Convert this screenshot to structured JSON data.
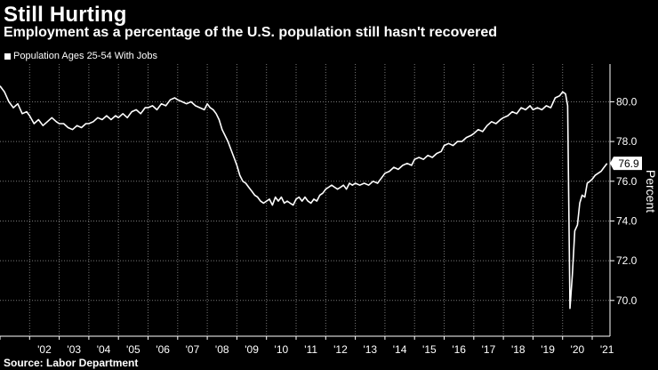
{
  "header": {
    "title": "Still Hurting",
    "subtitle": "Employment as a percentage of the U.S. population still hasn't recovered"
  },
  "legend": {
    "label": "Population Ages 25-54 With Jobs",
    "color": "#ffffff"
  },
  "source": "Source: Labor Department",
  "chart_data": {
    "type": "line",
    "title": "Still Hurting",
    "ylabel": "Percent",
    "xlabel": "",
    "ylim": [
      68.2,
      81.9
    ],
    "xlim": [
      2001.0,
      2021.6
    ],
    "yticks": [
      {
        "value": 70,
        "label": "70.0"
      },
      {
        "value": 72,
        "label": "72.0"
      },
      {
        "value": 74,
        "label": "74.0"
      },
      {
        "value": 76,
        "label": "76.0"
      },
      {
        "value": 78,
        "label": "78.0"
      },
      {
        "value": 80,
        "label": "80.0"
      }
    ],
    "xticks": [
      {
        "value": 2002,
        "label": "'02"
      },
      {
        "value": 2003,
        "label": "'03"
      },
      {
        "value": 2004,
        "label": "'04"
      },
      {
        "value": 2005,
        "label": "'05"
      },
      {
        "value": 2006,
        "label": "'06"
      },
      {
        "value": 2007,
        "label": "'07"
      },
      {
        "value": 2008,
        "label": "'08"
      },
      {
        "value": 2009,
        "label": "'09"
      },
      {
        "value": 2010,
        "label": "'10"
      },
      {
        "value": 2011,
        "label": "'11"
      },
      {
        "value": 2012,
        "label": "'12"
      },
      {
        "value": 2013,
        "label": "'13"
      },
      {
        "value": 2014,
        "label": "'14"
      },
      {
        "value": 2015,
        "label": "'15"
      },
      {
        "value": 2016,
        "label": "'16"
      },
      {
        "value": 2017,
        "label": "'17"
      },
      {
        "value": 2018,
        "label": "'18"
      },
      {
        "value": 2019,
        "label": "'19"
      },
      {
        "value": 2020,
        "label": "'20"
      },
      {
        "value": 2021,
        "label": "'21"
      }
    ],
    "last_value_label": "76.9",
    "series": [
      {
        "name": "Population Ages 25-54 With Jobs",
        "color": "#ffffff",
        "points": [
          [
            2001.0,
            80.8
          ],
          [
            2001.15,
            80.5
          ],
          [
            2001.3,
            80.0
          ],
          [
            2001.45,
            79.7
          ],
          [
            2001.6,
            79.9
          ],
          [
            2001.75,
            79.4
          ],
          [
            2001.9,
            79.5
          ],
          [
            2002.0,
            79.3
          ],
          [
            2002.15,
            78.9
          ],
          [
            2002.3,
            79.1
          ],
          [
            2002.45,
            78.8
          ],
          [
            2002.6,
            79.0
          ],
          [
            2002.75,
            79.2
          ],
          [
            2002.9,
            79.0
          ],
          [
            2003.0,
            78.9
          ],
          [
            2003.15,
            78.9
          ],
          [
            2003.3,
            78.7
          ],
          [
            2003.45,
            78.6
          ],
          [
            2003.6,
            78.8
          ],
          [
            2003.75,
            78.7
          ],
          [
            2003.9,
            78.9
          ],
          [
            2004.0,
            78.9
          ],
          [
            2004.15,
            79.0
          ],
          [
            2004.3,
            79.2
          ],
          [
            2004.45,
            79.1
          ],
          [
            2004.6,
            79.3
          ],
          [
            2004.75,
            79.1
          ],
          [
            2004.9,
            79.3
          ],
          [
            2005.0,
            79.2
          ],
          [
            2005.15,
            79.4
          ],
          [
            2005.3,
            79.2
          ],
          [
            2005.45,
            79.5
          ],
          [
            2005.6,
            79.6
          ],
          [
            2005.75,
            79.4
          ],
          [
            2005.9,
            79.7
          ],
          [
            2006.0,
            79.7
          ],
          [
            2006.15,
            79.8
          ],
          [
            2006.3,
            79.6
          ],
          [
            2006.45,
            79.9
          ],
          [
            2006.6,
            79.8
          ],
          [
            2006.75,
            80.1
          ],
          [
            2006.9,
            80.2
          ],
          [
            2007.0,
            80.1
          ],
          [
            2007.15,
            80.0
          ],
          [
            2007.3,
            79.9
          ],
          [
            2007.45,
            80.0
          ],
          [
            2007.6,
            79.8
          ],
          [
            2007.75,
            79.7
          ],
          [
            2007.9,
            79.6
          ],
          [
            2008.0,
            79.9
          ],
          [
            2008.1,
            79.7
          ],
          [
            2008.2,
            79.6
          ],
          [
            2008.3,
            79.4
          ],
          [
            2008.4,
            79.1
          ],
          [
            2008.5,
            78.6
          ],
          [
            2008.6,
            78.3
          ],
          [
            2008.7,
            78.0
          ],
          [
            2008.8,
            77.6
          ],
          [
            2008.9,
            77.2
          ],
          [
            2009.0,
            76.8
          ],
          [
            2009.1,
            76.3
          ],
          [
            2009.2,
            76.0
          ],
          [
            2009.3,
            75.9
          ],
          [
            2009.4,
            75.7
          ],
          [
            2009.5,
            75.5
          ],
          [
            2009.6,
            75.3
          ],
          [
            2009.7,
            75.2
          ],
          [
            2009.8,
            75.0
          ],
          [
            2009.9,
            74.9
          ],
          [
            2010.0,
            75.0
          ],
          [
            2010.1,
            75.1
          ],
          [
            2010.2,
            74.8
          ],
          [
            2010.3,
            75.2
          ],
          [
            2010.4,
            75.0
          ],
          [
            2010.5,
            75.2
          ],
          [
            2010.6,
            74.9
          ],
          [
            2010.7,
            75.0
          ],
          [
            2010.8,
            74.9
          ],
          [
            2010.9,
            74.8
          ],
          [
            2011.0,
            75.1
          ],
          [
            2011.1,
            75.2
          ],
          [
            2011.2,
            75.0
          ],
          [
            2011.3,
            75.2
          ],
          [
            2011.4,
            75.0
          ],
          [
            2011.5,
            74.9
          ],
          [
            2011.6,
            75.1
          ],
          [
            2011.7,
            75.0
          ],
          [
            2011.8,
            75.3
          ],
          [
            2011.9,
            75.4
          ],
          [
            2012.0,
            75.6
          ],
          [
            2012.1,
            75.7
          ],
          [
            2012.2,
            75.8
          ],
          [
            2012.3,
            75.7
          ],
          [
            2012.4,
            75.6
          ],
          [
            2012.5,
            75.7
          ],
          [
            2012.6,
            75.8
          ],
          [
            2012.7,
            75.6
          ],
          [
            2012.8,
            75.9
          ],
          [
            2012.9,
            75.8
          ],
          [
            2013.0,
            75.9
          ],
          [
            2013.15,
            75.8
          ],
          [
            2013.3,
            75.9
          ],
          [
            2013.45,
            75.8
          ],
          [
            2013.6,
            76.0
          ],
          [
            2013.75,
            75.9
          ],
          [
            2013.9,
            76.2
          ],
          [
            2014.0,
            76.4
          ],
          [
            2014.15,
            76.5
          ],
          [
            2014.3,
            76.7
          ],
          [
            2014.45,
            76.6
          ],
          [
            2014.6,
            76.8
          ],
          [
            2014.75,
            76.9
          ],
          [
            2014.9,
            76.8
          ],
          [
            2015.0,
            77.1
          ],
          [
            2015.15,
            77.2
          ],
          [
            2015.3,
            77.1
          ],
          [
            2015.45,
            77.3
          ],
          [
            2015.6,
            77.2
          ],
          [
            2015.75,
            77.4
          ],
          [
            2015.9,
            77.5
          ],
          [
            2016.0,
            77.8
          ],
          [
            2016.15,
            77.9
          ],
          [
            2016.3,
            77.8
          ],
          [
            2016.45,
            78.0
          ],
          [
            2016.6,
            78.0
          ],
          [
            2016.75,
            78.2
          ],
          [
            2016.9,
            78.3
          ],
          [
            2017.0,
            78.4
          ],
          [
            2017.15,
            78.6
          ],
          [
            2017.3,
            78.5
          ],
          [
            2017.45,
            78.8
          ],
          [
            2017.6,
            79.0
          ],
          [
            2017.75,
            78.9
          ],
          [
            2017.9,
            79.1
          ],
          [
            2018.0,
            79.2
          ],
          [
            2018.15,
            79.3
          ],
          [
            2018.3,
            79.5
          ],
          [
            2018.45,
            79.4
          ],
          [
            2018.6,
            79.7
          ],
          [
            2018.75,
            79.6
          ],
          [
            2018.9,
            79.8
          ],
          [
            2019.0,
            79.6
          ],
          [
            2019.15,
            79.7
          ],
          [
            2019.3,
            79.6
          ],
          [
            2019.45,
            79.8
          ],
          [
            2019.6,
            79.7
          ],
          [
            2019.75,
            80.2
          ],
          [
            2019.9,
            80.3
          ],
          [
            2020.0,
            80.5
          ],
          [
            2020.1,
            80.4
          ],
          [
            2020.17,
            79.8
          ],
          [
            2020.25,
            69.6
          ],
          [
            2020.33,
            71.3
          ],
          [
            2020.41,
            73.5
          ],
          [
            2020.5,
            73.8
          ],
          [
            2020.58,
            74.9
          ],
          [
            2020.66,
            75.3
          ],
          [
            2020.75,
            75.2
          ],
          [
            2020.83,
            75.9
          ],
          [
            2020.92,
            76.0
          ],
          [
            2021.0,
            76.1
          ],
          [
            2021.1,
            76.3
          ],
          [
            2021.2,
            76.4
          ],
          [
            2021.3,
            76.5
          ],
          [
            2021.4,
            76.7
          ],
          [
            2021.5,
            76.9
          ]
        ]
      }
    ]
  }
}
